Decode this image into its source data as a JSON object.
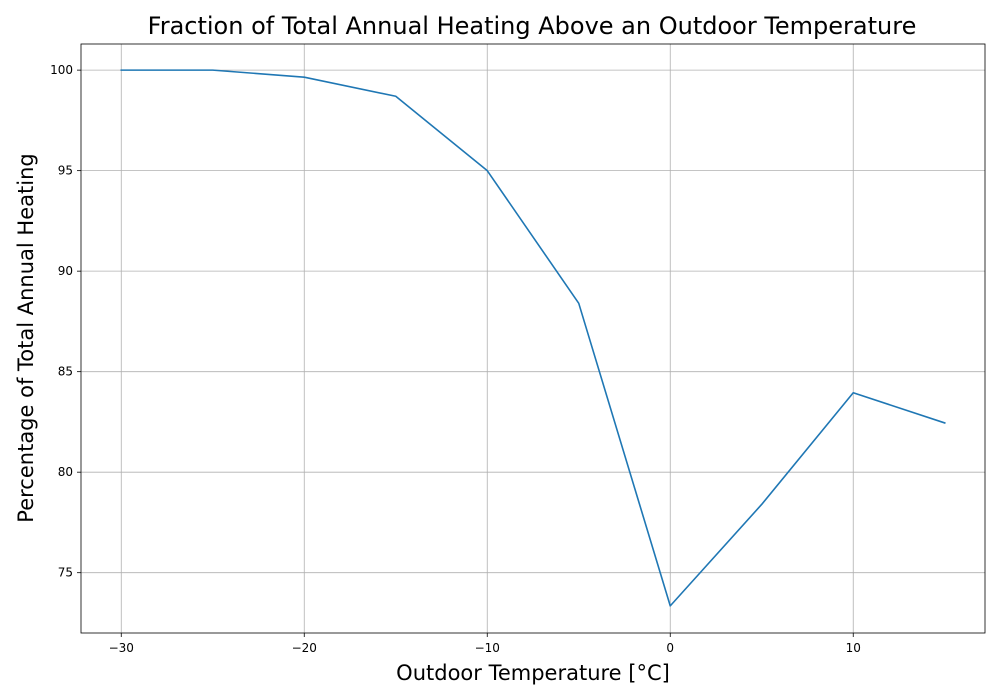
{
  "chart_data": {
    "type": "line",
    "title": "Fraction of Total Annual Heating Above an Outdoor Temperature",
    "xlabel": "Outdoor Temperature [°C]",
    "ylabel": "Percentage of Total Annual Heating",
    "xlim": [
      -32.2,
      17.2
    ],
    "ylim": [
      72.0,
      101.3
    ],
    "xticks": [
      -30,
      -20,
      -10,
      0,
      10
    ],
    "xtick_labels": [
      "−30",
      "−20",
      "−10",
      "0",
      "10"
    ],
    "yticks": [
      75,
      80,
      85,
      90,
      95,
      100
    ],
    "ytick_labels": [
      "75",
      "80",
      "85",
      "90",
      "95",
      "100"
    ],
    "grid": true,
    "series": [
      {
        "color": "#1f77b4",
        "x": [
          -30,
          -25,
          -20,
          -15,
          -10,
          -5,
          0,
          5,
          10,
          15
        ],
        "y": [
          100.0,
          100.0,
          99.65,
          98.7,
          95.0,
          88.4,
          73.35,
          78.4,
          83.95,
          82.45
        ]
      }
    ]
  }
}
